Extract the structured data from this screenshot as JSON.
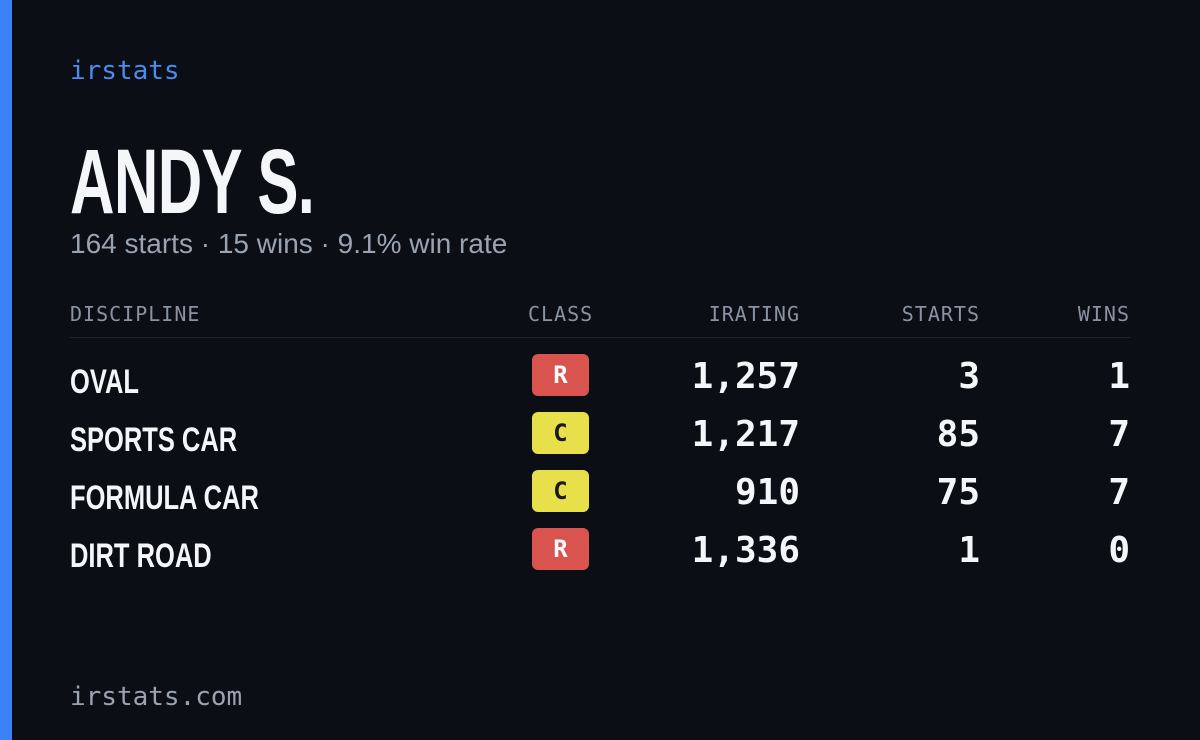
{
  "header": {
    "brand": "irstats",
    "name": "ANDY S.",
    "summary": "164 starts · 15 wins · 9.1% win rate"
  },
  "table": {
    "columns": [
      "DISCIPLINE",
      "CLASS",
      "IRATING",
      "STARTS",
      "WINS"
    ],
    "rows": [
      [
        "OVAL",
        "R",
        "1,257",
        3,
        1
      ],
      [
        "SPORTS CAR",
        "C",
        "1,217",
        85,
        7
      ],
      [
        "FORMULA CAR",
        "C",
        910,
        75,
        7
      ],
      [
        "DIRT ROAD",
        "R",
        "1,336",
        1,
        0
      ]
    ]
  },
  "footer": {
    "site": "irstats.com"
  }
}
